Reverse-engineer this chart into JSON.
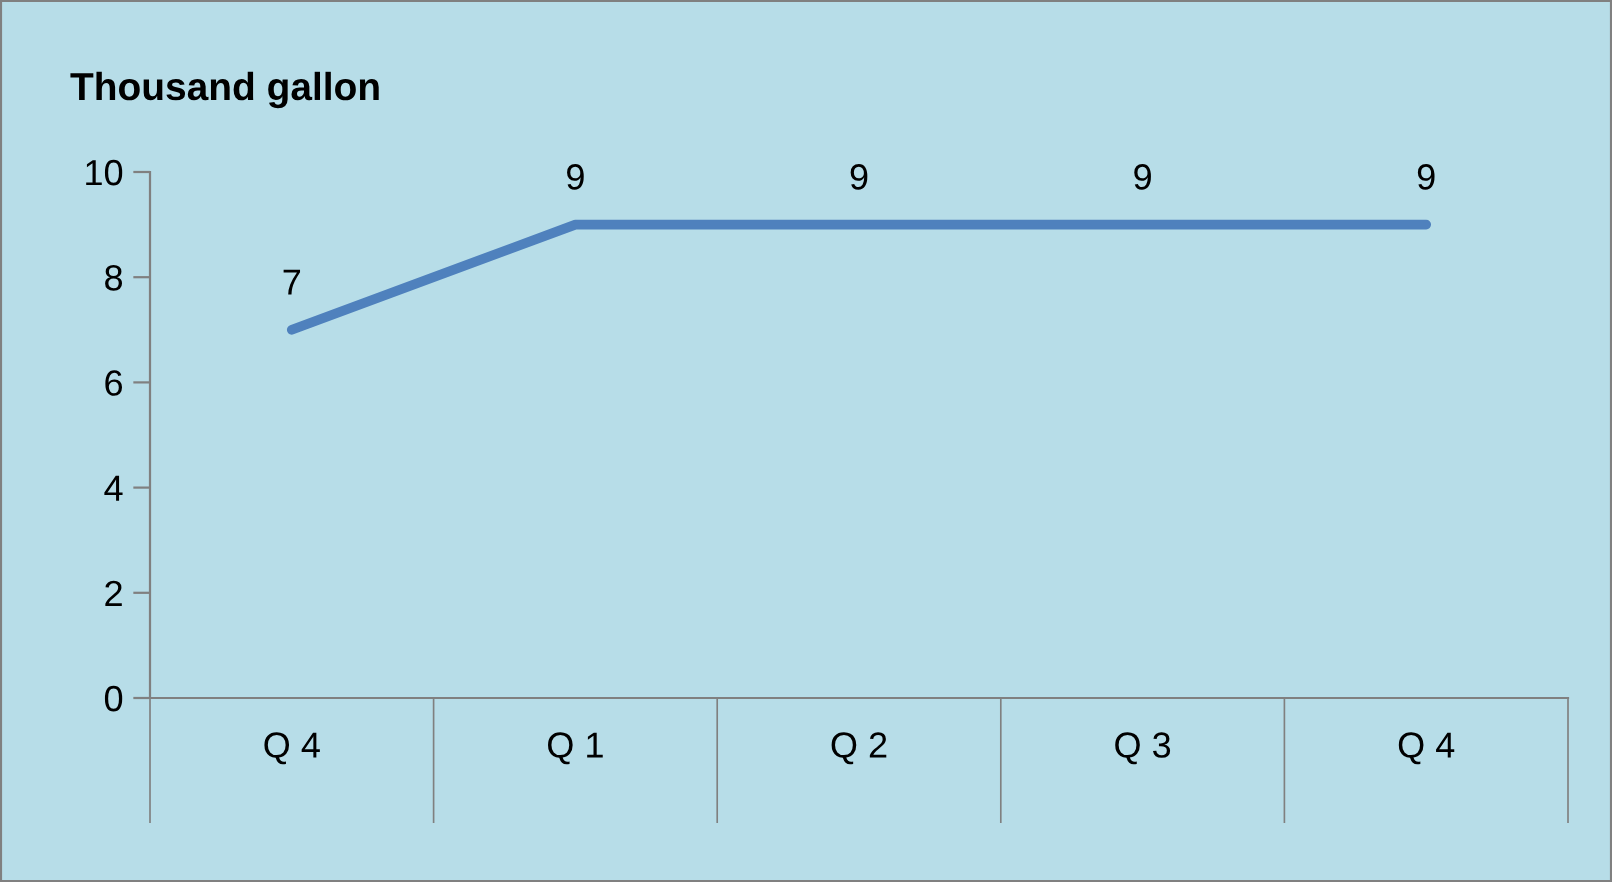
{
  "chart_data": {
    "type": "line",
    "title": "Thousand gallon",
    "categories": [
      "Q 4",
      "Q 1",
      "Q 2",
      "Q 3",
      "Q 4"
    ],
    "series": [
      {
        "color": "#4f81bd",
        "values": [
          7,
          9,
          9,
          9,
          9
        ]
      }
    ],
    "ylim": [
      0,
      10
    ],
    "yticks": [
      0,
      2,
      4,
      6,
      8,
      10
    ],
    "data_labels": true
  }
}
